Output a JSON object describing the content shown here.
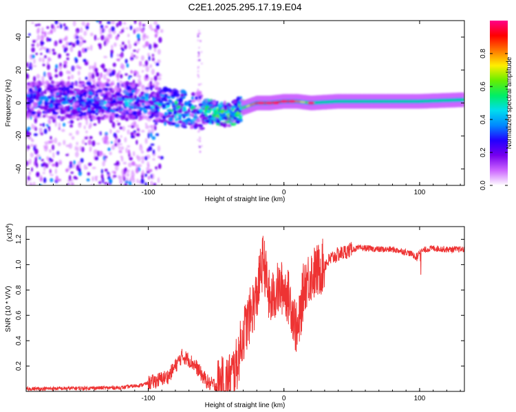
{
  "title": "C2E1.2025.295.17.19.E04",
  "colors": {
    "snr_line": "#ee3333",
    "frame": "#000000",
    "background": "#ffffff"
  },
  "chart_data": [
    {
      "type": "heatmap",
      "name": "spectrogram",
      "xlabel": "Height of straight line (km)",
      "ylabel": "Frequency (Hz)",
      "xlim": [
        -190,
        133
      ],
      "ylim": [
        -50,
        50
      ],
      "x_ticks": [
        -100,
        0,
        100
      ],
      "x_tick_labels": [
        "-100",
        "0",
        "100"
      ],
      "y_ticks": [
        -40,
        -20,
        0,
        20,
        40
      ],
      "y_tick_labels": [
        "-40",
        "-20",
        "0",
        "20",
        "40"
      ],
      "colorbar": {
        "label": "Normalized spectral amplitude",
        "range": [
          0.0,
          1.0
        ],
        "ticks": [
          0.0,
          0.2,
          0.4,
          0.6,
          0.8
        ],
        "tick_labels": [
          "0.0",
          "0.2",
          "0.4",
          "0.6",
          "0.8"
        ],
        "colormap": [
          "#ffffff",
          "#cc66ff",
          "#7700ee",
          "#2200ff",
          "#0088ff",
          "#00ddee",
          "#00ee66",
          "#66ee00",
          "#ffee00",
          "#ff7700",
          "#ff0000",
          "#ff0088"
        ]
      },
      "ridge": {
        "x": [
          -190,
          -100,
          -80,
          -60,
          -50,
          -40,
          -30,
          -20,
          -10,
          0,
          10,
          20,
          40,
          60,
          80,
          100,
          133
        ],
        "frequency": [
          2,
          1,
          -3,
          -5,
          -6,
          -7,
          -3,
          0,
          0,
          1,
          1,
          0,
          1,
          1,
          1,
          1,
          2
        ],
        "amplitude": [
          0.35,
          0.4,
          0.5,
          0.45,
          0.6,
          0.55,
          0.6,
          0.9,
          0.95,
          0.9,
          0.85,
          0.6,
          0.5,
          0.5,
          0.5,
          0.55,
          0.5
        ]
      }
    },
    {
      "type": "line",
      "name": "snr",
      "xlabel": "Height of straight line (km)",
      "ylabel": "SNR (10 * V/V)",
      "y_multiplier": "(x10",
      "y_multiplier_exp": "4",
      "y_multiplier_close": ")",
      "xlim": [
        -190,
        133
      ],
      "ylim": [
        0.0,
        1.3
      ],
      "x_ticks": [
        -100,
        0,
        100
      ],
      "x_tick_labels": [
        "-100",
        "0",
        "100"
      ],
      "y_ticks": [
        0.2,
        0.4,
        0.6,
        0.8,
        1.0,
        1.2
      ],
      "y_tick_labels": [
        "0.2",
        "0.4",
        "0.6",
        "0.8",
        "1.0",
        "1.2"
      ],
      "series": [
        {
          "name": "SNR",
          "color": "#ee3333",
          "x": [
            -190,
            -150,
            -120,
            -105,
            -95,
            -85,
            -80,
            -75,
            -70,
            -65,
            -60,
            -55,
            -50,
            -45,
            -40,
            -35,
            -30,
            -25,
            -20,
            -17,
            -15,
            -12,
            -10,
            -5,
            0,
            5,
            10,
            12,
            15,
            20,
            25,
            30,
            35,
            40,
            45,
            50,
            55,
            60,
            70,
            80,
            90,
            95,
            98,
            100,
            105,
            110,
            120,
            133
          ],
          "y": [
            0.02,
            0.025,
            0.03,
            0.05,
            0.08,
            0.12,
            0.2,
            0.28,
            0.25,
            0.2,
            0.12,
            0.06,
            0.05,
            0.06,
            0.1,
            0.2,
            0.45,
            0.6,
            0.75,
            0.95,
            1.05,
            0.8,
            0.7,
            0.8,
            0.82,
            0.7,
            0.45,
            0.6,
            0.85,
            0.92,
            0.95,
            1.0,
            1.05,
            1.08,
            1.1,
            1.12,
            1.13,
            1.13,
            1.12,
            1.12,
            1.1,
            1.08,
            1.05,
            1.1,
            1.12,
            1.13,
            1.12,
            1.12
          ]
        }
      ]
    }
  ]
}
